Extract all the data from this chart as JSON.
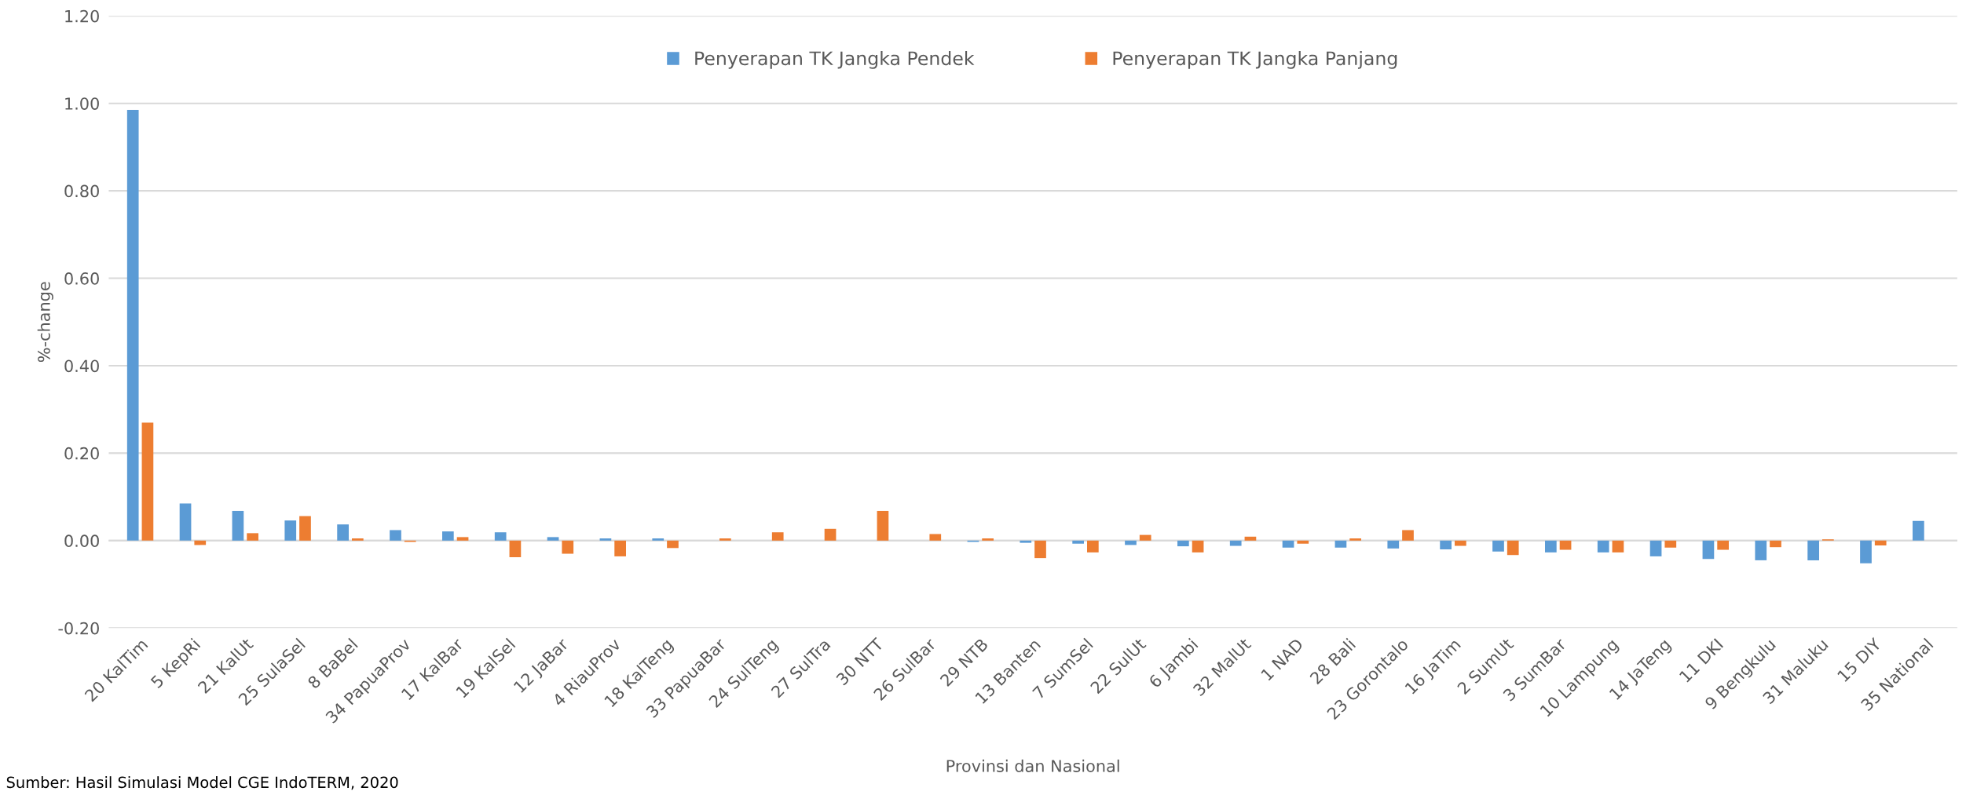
{
  "chart_data": {
    "type": "bar",
    "xlabel": "Provinsi dan Nasional",
    "ylabel": "%-change",
    "categories": [
      "20 KalTim",
      "5 KepRi",
      "21 KalUt",
      "25 SulaSel",
      "8 BaBel",
      "34 PapuaProv",
      "17 KalBar",
      "19 KalSel",
      "12 JaBar",
      "4 RiauProv",
      "18 KalTeng",
      "33 PapuaBar",
      "24 SulTeng",
      "27 SulTra",
      "30 NTT",
      "26 SulBar",
      "29 NTB",
      "13 Banten",
      "7 SumSel",
      "22 SulUt",
      "6 Jambi",
      "32 MalUt",
      "1 NAD",
      "28 Bali",
      "23 Gorontalo",
      "16 JaTim",
      "2 SumUt",
      "3 SumBar",
      "10 Lampung",
      "14 JaTeng",
      "11 DKI",
      "9 Bengkulu",
      "31 Maluku",
      "15 DIY",
      "35 National"
    ],
    "series": [
      {
        "name": "Penyerapan TK Jangka Pendek",
        "color": "#5b9bd5",
        "values": [
          0.985,
          0.085,
          0.068,
          0.046,
          0.037,
          0.024,
          0.021,
          0.019,
          0.008,
          0.005,
          0.005,
          0,
          0,
          0,
          0,
          0,
          -0.003,
          -0.005,
          -0.007,
          -0.01,
          -0.013,
          -0.012,
          -0.016,
          -0.016,
          -0.018,
          -0.02,
          -0.025,
          -0.027,
          -0.027,
          -0.036,
          -0.042,
          -0.045,
          -0.045,
          -0.052,
          0.045
        ]
      },
      {
        "name": "Penyerapan TK Jangka Panjang",
        "color": "#ed7d31",
        "values": [
          0.27,
          -0.01,
          0.017,
          0.056,
          0.005,
          -0.003,
          0.008,
          -0.038,
          -0.03,
          -0.036,
          -0.017,
          0.005,
          0.019,
          0.027,
          0.068,
          0.015,
          0.005,
          -0.04,
          -0.027,
          0.013,
          -0.027,
          0.009,
          -0.007,
          0.005,
          0.024,
          -0.012,
          -0.033,
          -0.021,
          -0.027,
          -0.016,
          -0.021,
          -0.015,
          0.003,
          -0.011,
          null
        ]
      }
    ],
    "ylim": [
      -0.2,
      1.2
    ],
    "yticks": [
      {
        "value": -0.2,
        "label": "-0.20"
      },
      {
        "value": 0,
        "label": "0.00"
      },
      {
        "value": 0.2,
        "label": "0.20"
      },
      {
        "value": 0.4,
        "label": "0.40"
      },
      {
        "value": 0.6,
        "label": "0.60"
      },
      {
        "value": 0.8,
        "label": "0.80"
      },
      {
        "value": 1.0,
        "label": "1.00"
      },
      {
        "value": 1.2,
        "label": "1.20"
      }
    ],
    "grid": "y",
    "legend": "top",
    "annotations": [
      "Sumber: Hasil Simulasi Model CGE IndoTERM, 2020"
    ]
  }
}
